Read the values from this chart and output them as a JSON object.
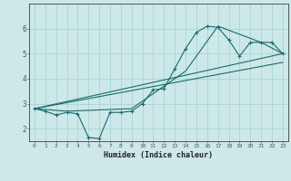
{
  "title": "",
  "xlabel": "Humidex (Indice chaleur)",
  "ylabel": "",
  "bg_color": "#cce8e8",
  "line_color": "#1a6b6b",
  "grid_color": "#aad4d4",
  "xlim": [
    -0.5,
    23.5
  ],
  "ylim": [
    1.5,
    7.0
  ],
  "yticks": [
    2,
    3,
    4,
    5,
    6
  ],
  "xticks": [
    0,
    1,
    2,
    3,
    4,
    5,
    6,
    7,
    8,
    9,
    10,
    11,
    12,
    13,
    14,
    15,
    16,
    17,
    18,
    19,
    20,
    21,
    22,
    23
  ],
  "line1_x": [
    0,
    1,
    2,
    3,
    4,
    5,
    6,
    7,
    8,
    9,
    10,
    11,
    12,
    13,
    14,
    15,
    16,
    17,
    18,
    19,
    20,
    21,
    22,
    23
  ],
  "line1_y": [
    2.8,
    2.7,
    2.55,
    2.65,
    2.6,
    1.65,
    1.6,
    2.65,
    2.65,
    2.7,
    3.0,
    3.55,
    3.6,
    4.4,
    5.2,
    5.85,
    6.1,
    6.05,
    5.55,
    4.9,
    5.45,
    5.45,
    5.45,
    5.0
  ],
  "line2_x": [
    0,
    3,
    9,
    14,
    17,
    21,
    23
  ],
  "line2_y": [
    2.8,
    2.7,
    2.8,
    4.3,
    6.1,
    5.45,
    5.0
  ],
  "line3_x": [
    0,
    23
  ],
  "line3_y": [
    2.8,
    4.65
  ],
  "line4_x": [
    0,
    23
  ],
  "line4_y": [
    2.8,
    5.0
  ]
}
